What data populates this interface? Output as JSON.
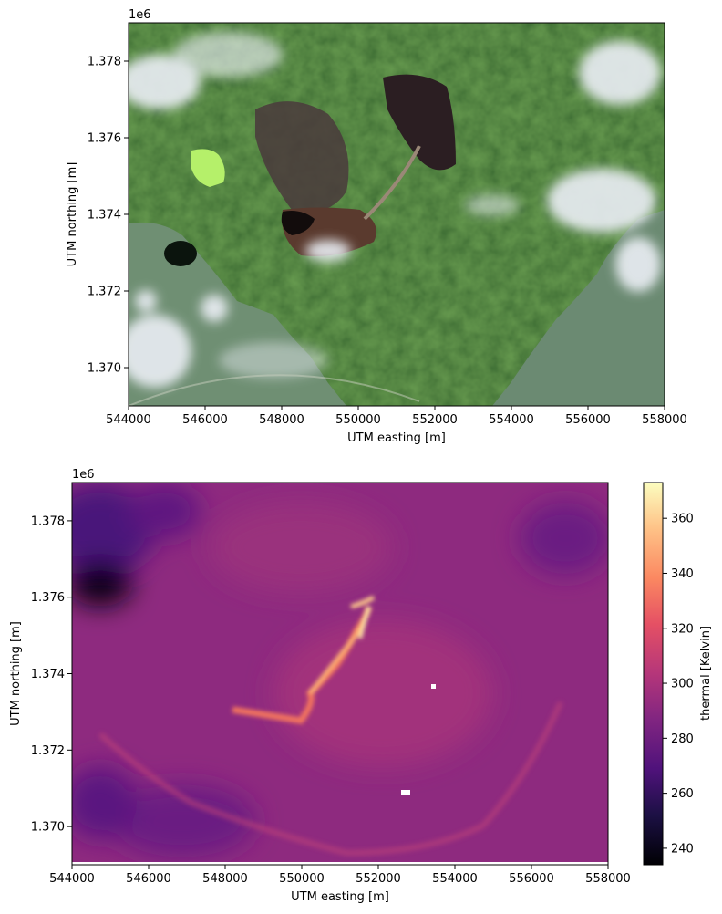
{
  "chart_data": [
    {
      "type": "image",
      "image_content": "satellite RGB composite",
      "xlabel": "UTM easting [m]",
      "ylabel": "UTM northing [m]",
      "y_offset_label": "1e6",
      "xlim": [
        544000,
        558000
      ],
      "ylim": [
        1.369,
        1.379
      ],
      "x_ticks": [
        "544000",
        "546000",
        "548000",
        "550000",
        "552000",
        "554000",
        "556000",
        "558000"
      ],
      "y_ticks": [
        "1.370",
        "1.372",
        "1.374",
        "1.376",
        "1.378"
      ],
      "x_tick_values": [
        544000,
        546000,
        548000,
        550000,
        552000,
        554000,
        556000,
        558000
      ],
      "y_tick_values": [
        1.37,
        1.372,
        1.374,
        1.376,
        1.378
      ]
    },
    {
      "type": "heatmap",
      "image_content": "thermal band",
      "colormap": "magma",
      "xlabel": "UTM easting [m]",
      "ylabel": "UTM northing [m]",
      "y_offset_label": "1e6",
      "xlim": [
        544000,
        558000
      ],
      "ylim": [
        1.369,
        1.379
      ],
      "x_ticks": [
        "544000",
        "546000",
        "548000",
        "550000",
        "552000",
        "554000",
        "556000",
        "558000"
      ],
      "y_ticks": [
        "1.370",
        "1.372",
        "1.374",
        "1.376",
        "1.378"
      ],
      "x_tick_values": [
        544000,
        546000,
        548000,
        550000,
        552000,
        554000,
        556000,
        558000
      ],
      "y_tick_values": [
        1.37,
        1.372,
        1.374,
        1.376,
        1.378
      ],
      "colorbar": {
        "label": "thermal [Kelvin]",
        "range": [
          234,
          373
        ],
        "ticks": [
          "240",
          "260",
          "280",
          "300",
          "320",
          "340",
          "360"
        ],
        "tick_values": [
          240,
          260,
          280,
          300,
          320,
          340,
          360
        ]
      }
    }
  ]
}
